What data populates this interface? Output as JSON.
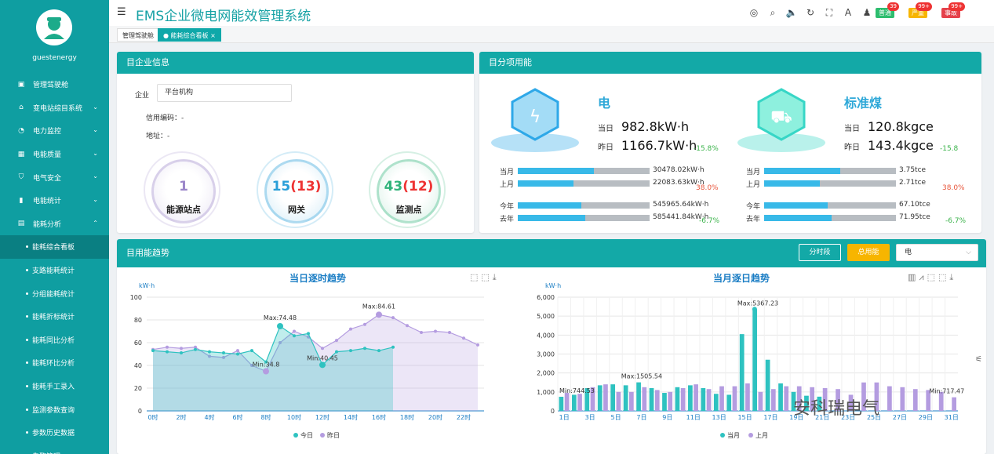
{
  "app": {
    "title": "EMS企业微电网能效管理系统",
    "username": "guestenergy"
  },
  "menu": [
    {
      "label": "管理驾驶舱",
      "icon": "monitor-icon",
      "chev": false
    },
    {
      "label": "变电站综目系统",
      "icon": "home-icon",
      "chev": true
    },
    {
      "label": "电力监控",
      "icon": "gauge-icon",
      "chev": true
    },
    {
      "label": "电能质量",
      "icon": "meter-icon",
      "chev": true
    },
    {
      "label": "电气安全",
      "icon": "shield-icon",
      "chev": true
    },
    {
      "label": "电能统计",
      "icon": "bar-chart-icon",
      "chev": true
    },
    {
      "label": "能耗分析",
      "icon": "analysis-icon",
      "chev": true
    }
  ],
  "submenu": [
    "能耗综合看板",
    "支路能耗统计",
    "分组能耗统计",
    "能耗折标统计",
    "能耗同比分析",
    "能耗环比分析",
    "能耗手工录入",
    "监测参数查询",
    "参数历史数据",
    "告警管理"
  ],
  "header": {
    "icons": [
      "support-icon",
      "search-icon",
      "volume-icon",
      "refresh-icon",
      "fullscreen-icon",
      "font-size-icon",
      "shirt-icon"
    ],
    "badges": [
      {
        "label": "普通",
        "count": "39",
        "color": "#2dbd6e"
      },
      {
        "label": "严重",
        "count": "99+",
        "color": "#f7b500"
      },
      {
        "label": "事故",
        "count": "99+",
        "color": "#e5414b"
      }
    ]
  },
  "tabs": [
    {
      "label": "管理驾驶舱"
    },
    {
      "label": "能耗综合看板",
      "close": "×"
    }
  ],
  "company": {
    "header": "企业信息",
    "company_label": "企业",
    "company_value": "平台机构",
    "credit_label": "信用编码：-",
    "address_label": "地址：-",
    "gauges": [
      {
        "value": "1",
        "extra": "",
        "label": "能源站点",
        "color": "#9b86c9"
      },
      {
        "value": "15",
        "extra": "(13)",
        "label": "网关",
        "color": "#2a9fd8"
      },
      {
        "value": "43",
        "extra": "(12)",
        "label": "监测点",
        "color": "#30b37a"
      }
    ]
  },
  "subitem": {
    "header": "分项用能",
    "cards": [
      {
        "name": "电",
        "today_label": "当日",
        "today": "982.8kW·h",
        "yday_label": "昨日",
        "yday": "1166.7kW·h",
        "day_pct": "-15.8%",
        "month_label": "当月",
        "month": "30478.02kW·h",
        "month_fill": 0.58,
        "lmonth_label": "上月",
        "lmonth": "22083.63kW·h",
        "lmonth_fill": 0.42,
        "month_pct": "38.0%",
        "year_label": "今年",
        "year": "545965.64kW·h",
        "year_fill": 0.48,
        "lyear_label": "去年",
        "lyear": "585441.84kW·h",
        "lyear_fill": 0.51,
        "year_pct": "-6.7%"
      },
      {
        "name": "标准煤",
        "today_label": "当日",
        "today": "120.8kgce",
        "yday_label": "昨日",
        "yday": "143.4kgce",
        "day_pct": "-15.8",
        "month_label": "当月",
        "month": "3.75tce",
        "month_fill": 0.58,
        "lmonth_label": "上月",
        "lmonth": "2.71tce",
        "lmonth_fill": 0.42,
        "month_pct": "38.0%",
        "year_label": "今年",
        "year": "67.10tce",
        "year_fill": 0.48,
        "lyear_label": "去年",
        "lyear": "71.95tce",
        "lyear_fill": 0.51,
        "year_pct": "-6.7%"
      }
    ]
  },
  "trend": {
    "header": "用能趋势",
    "btn_period": "分时段",
    "btn_total": "总用能",
    "select_value": "电"
  },
  "colors": {
    "today": "#2ec2c0",
    "yesterday": "#b49ce0",
    "teal": "#13a9a7"
  },
  "chart_data": [
    {
      "type": "area",
      "title": "当日逐时趋势",
      "ylabel": "kW·h",
      "ylim": [
        0,
        100
      ],
      "yticks": [
        0,
        20,
        40,
        60,
        80,
        100
      ],
      "x": [
        "0时",
        "1时",
        "2时",
        "3时",
        "4时",
        "5时",
        "6时",
        "7时",
        "8时",
        "9时",
        "10时",
        "11时",
        "12时",
        "13时",
        "14时",
        "15时",
        "16时",
        "17时",
        "18时",
        "19时",
        "20时",
        "21时",
        "22时",
        "23时"
      ],
      "xtick_labels": [
        "0时",
        "2时",
        "4时",
        "6时",
        "8时",
        "10时",
        "12时",
        "14时",
        "16时",
        "18时",
        "20时",
        "22时"
      ],
      "series": [
        {
          "name": "今日",
          "values": [
            53,
            52,
            51,
            54,
            52,
            51,
            50,
            53,
            43,
            74.48,
            66,
            68,
            40.45,
            52,
            53,
            55,
            53,
            56,
            null,
            null,
            null,
            null,
            null,
            null
          ]
        },
        {
          "name": "昨日",
          "values": [
            54,
            56,
            55,
            56,
            48,
            47,
            53,
            40,
            34.8,
            60,
            70,
            65,
            55,
            62,
            72,
            76,
            84.61,
            82,
            75,
            69,
            70,
            69,
            64,
            58
          ]
        }
      ],
      "annotations": [
        {
          "text": "Max:74.48"
        },
        {
          "text": "Min:34.8"
        },
        {
          "text": "Min:40.45"
        },
        {
          "text": "Max:84.61"
        }
      ],
      "legend": [
        "今日",
        "昨日"
      ]
    },
    {
      "type": "bar",
      "title": "当月逐日趋势",
      "ylabel": "kW·h",
      "ylim": [
        0,
        6000
      ],
      "yticks": [
        "0",
        "1,000",
        "2,000",
        "3,000",
        "4,000",
        "5,000",
        "6,000"
      ],
      "categories": [
        "1日",
        "2日",
        "3日",
        "4日",
        "5日",
        "6日",
        "7日",
        "8日",
        "9日",
        "10日",
        "11日",
        "12日",
        "13日",
        "14日",
        "15日",
        "16日",
        "17日",
        "18日",
        "19日",
        "20日",
        "21日",
        "22日",
        "23日",
        "24日",
        "25日",
        "26日",
        "27日",
        "28日",
        "29日",
        "30日",
        "31日"
      ],
      "xtick_labels": [
        "1日",
        "3日",
        "5日",
        "7日",
        "9日",
        "11日",
        "13日",
        "15日",
        "17日",
        "19日",
        "21日",
        "23日",
        "25日",
        "27日",
        "29日",
        "31日"
      ],
      "series": [
        {
          "name": "当月",
          "values": [
            744.53,
            850,
            1200,
            1350,
            1400,
            1350,
            1505.54,
            1200,
            950,
            1250,
            1350,
            1200,
            900,
            850,
            4050,
            5367.23,
            2700,
            1450,
            1000,
            800,
            750,
            null,
            null,
            null,
            null,
            null,
            null,
            null,
            null,
            null,
            null
          ]
        },
        {
          "name": "上月",
          "values": [
            950,
            900,
            1250,
            1400,
            1000,
            1000,
            1250,
            1100,
            1000,
            1200,
            1400,
            1150,
            1300,
            1300,
            1450,
            1000,
            1150,
            1300,
            1300,
            1250,
            1200,
            1150,
            850,
            1500,
            1500,
            1300,
            1250,
            1150,
            1100,
            1000,
            717.47
          ]
        }
      ],
      "annotations": [
        {
          "text": "Min:744.53"
        },
        {
          "text": "Max:1505.54"
        },
        {
          "text": "Max:5367.23"
        },
        {
          "text": "Min:717.47"
        }
      ],
      "legend": [
        "当月",
        "上月"
      ]
    }
  ],
  "watermark": "安科瑞电气"
}
